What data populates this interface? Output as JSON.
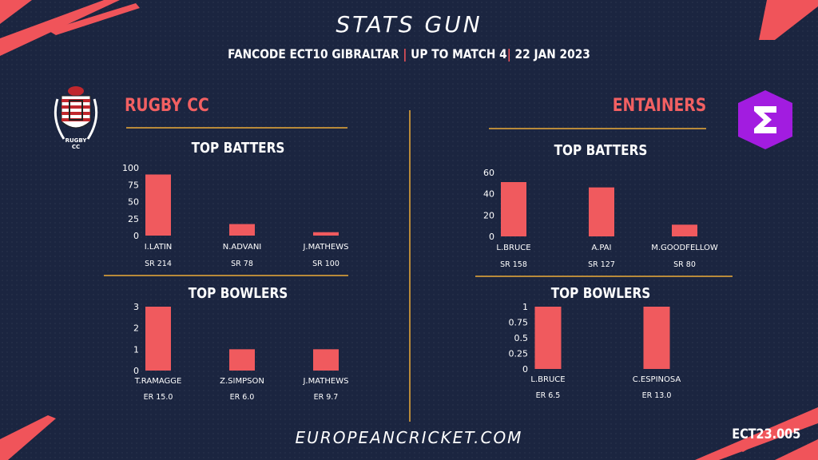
{
  "header": {
    "title": "STATS GUN",
    "competition": "FANCODE ECT10 GIBRALTAR",
    "stage": "UP TO MATCH  4",
    "date": "22 JAN 2023"
  },
  "teams": {
    "left": {
      "name": "RUGBY CC",
      "logo_text": "RUGBY CC"
    },
    "right": {
      "name": "ENTAINERS",
      "logo_icon": "sigma-icon",
      "logo_color": "#a21ce0"
    }
  },
  "footer": {
    "site": "EUROPEANCRICKET.COM",
    "code": "ECT23.005"
  },
  "colors": {
    "bar": "#f05a5e",
    "accent_line": "#b88a3a",
    "background": "#1b2540"
  },
  "chart_data": [
    {
      "id": "rugby-batters",
      "type": "bar",
      "title": "TOP BATTERS",
      "categories": [
        "I.LATIN",
        "N.ADVANI",
        "J.MATHEWS"
      ],
      "values": [
        90,
        17,
        5
      ],
      "notes": [
        "SR  214",
        "SR 78",
        "SR 100"
      ],
      "yticks": [
        "0",
        "25",
        "50",
        "75",
        "100"
      ],
      "ylim": [
        0,
        100
      ]
    },
    {
      "id": "rugby-bowlers",
      "type": "bar",
      "title": "TOP BOWLERS",
      "categories": [
        "T.RAMAGGE",
        "Z.SIMPSON",
        "J.MATHEWS"
      ],
      "values": [
        3,
        1,
        1
      ],
      "notes": [
        "ER 15.0",
        "ER 6.0",
        "ER 9.7"
      ],
      "yticks": [
        "0",
        "1",
        "2",
        "3"
      ],
      "ylim": [
        0,
        3
      ]
    },
    {
      "id": "entainers-batters",
      "type": "bar",
      "title": "TOP BATTERS",
      "categories": [
        "L.BRUCE",
        "A.PAI",
        "M.GOODFELLOW"
      ],
      "values": [
        51,
        46,
        11
      ],
      "notes": [
        "SR 158",
        "SR 127",
        "SR 80"
      ],
      "yticks": [
        "0",
        "20",
        "40",
        "60"
      ],
      "ylim": [
        0,
        60
      ]
    },
    {
      "id": "entainers-bowlers",
      "type": "bar",
      "title": "TOP BOWLERS",
      "categories": [
        "L.BRUCE",
        "C.ESPINOSA"
      ],
      "values": [
        1,
        1
      ],
      "notes": [
        "ER 6.5",
        "ER 13.0"
      ],
      "yticks": [
        "0",
        "0.25",
        "0.5",
        "0.75",
        "1"
      ],
      "ylim": [
        0,
        1
      ]
    }
  ]
}
